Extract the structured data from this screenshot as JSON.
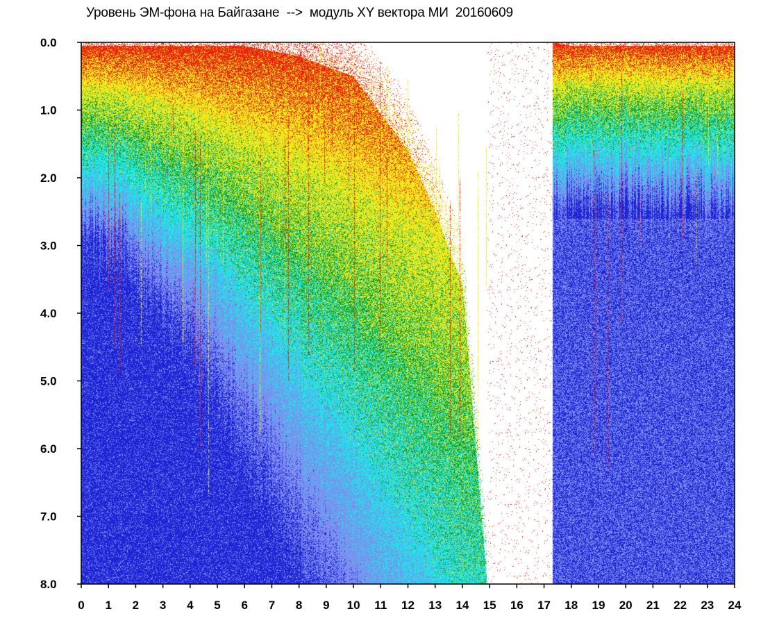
{
  "chart_data": {
    "type": "heatmap",
    "title": "Уровень ЭМ-фона на Байгазане  -->  модуль XY вектора МИ  20160609",
    "xlabel": "",
    "ylabel": "",
    "xlim": [
      0,
      24
    ],
    "ylim": [
      0,
      8
    ],
    "y_inverted": true,
    "grid": false,
    "x_ticks": [
      "0",
      "1",
      "2",
      "3",
      "4",
      "5",
      "6",
      "7",
      "8",
      "9",
      "10",
      "11",
      "12",
      "13",
      "14",
      "15",
      "16",
      "17",
      "18",
      "19",
      "20",
      "21",
      "22",
      "23",
      "24"
    ],
    "y_ticks": [
      "0.0",
      "1.0",
      "2.0",
      "3.0",
      "4.0",
      "5.0",
      "6.0",
      "7.0",
      "8.0"
    ],
    "color_scale": [
      "#1c24d6",
      "#7f8cf0",
      "#1fe4e8",
      "#109a10",
      "#f0e818",
      "#ee2010"
    ],
    "data_gaps": [
      {
        "x_start": 14.9,
        "x_end": 17.3,
        "description": "sparse / missing data"
      }
    ],
    "cutoff_boundary": {
      "x": [
        0,
        6,
        8,
        10,
        12,
        13,
        14,
        14.9,
        17.3,
        18,
        24
      ],
      "y": [
        0.05,
        0.05,
        0.2,
        0.5,
        1.6,
        2.5,
        3.6,
        8.0,
        0.0,
        0.05,
        0.05
      ]
    }
  }
}
